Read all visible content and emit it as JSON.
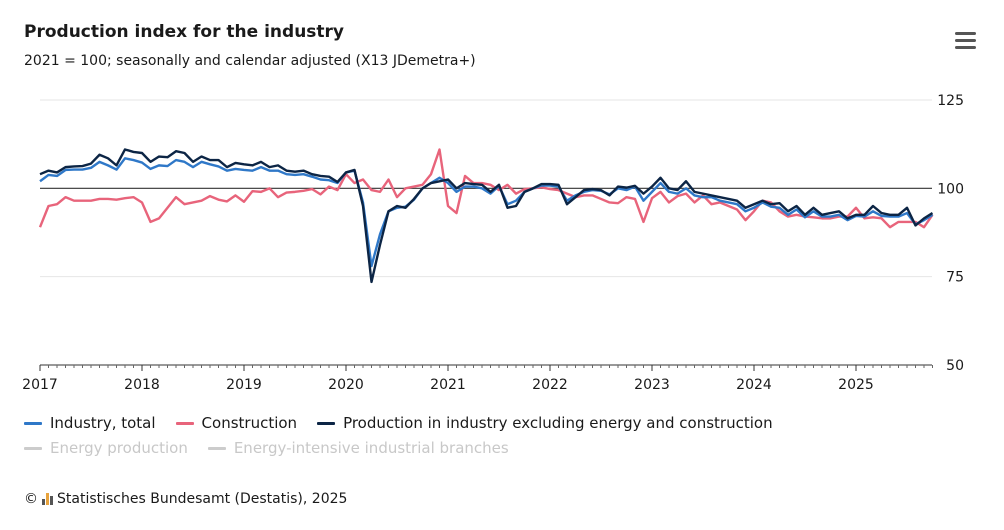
{
  "title": "Production index for the industry",
  "subtitle": "2021 = 100; seasonally and calendar adjusted (X13 JDemetra+)",
  "footer": "Statistisches Bundesamt (Destatis), 2025",
  "copyright": "©",
  "menu_icon": "hamburger-menu-icon",
  "chart_data": {
    "type": "line",
    "title": "Production index for the industry",
    "x_start": "2017-01",
    "frequency": "monthly",
    "xticks": [
      "2017",
      "2018",
      "2019",
      "2020",
      "2021",
      "2022",
      "2023",
      "2024",
      "2025"
    ],
    "yticks": [
      50,
      75,
      100,
      125
    ],
    "ylim": [
      50,
      125
    ],
    "reference_line": 100,
    "legend_position": "bottom",
    "series": [
      {
        "name": "Industry, total",
        "color": "#2f78c8",
        "visible": true,
        "values": [
          102,
          103.8,
          103.5,
          105.2,
          105.3,
          105.3,
          105.8,
          107.5,
          106.5,
          105.3,
          108.5,
          108,
          107.3,
          105.5,
          106.5,
          106.3,
          108,
          107.5,
          106,
          107.5,
          106.8,
          106.2,
          105,
          105.5,
          105.2,
          105,
          106,
          105,
          105,
          104,
          103.8,
          104,
          103.3,
          102.5,
          102.3,
          101.5,
          104.5,
          105,
          96,
          78,
          87,
          93.5,
          94.5,
          94.8,
          96.8,
          100,
          101.5,
          103,
          101.5,
          99,
          100.5,
          100.5,
          100,
          98.5,
          100.7,
          95.5,
          96.5,
          99,
          100,
          100.8,
          100.8,
          100.5,
          96.5,
          98,
          99,
          99.5,
          99.3,
          98.3,
          100,
          99.5,
          100.5,
          96.5,
          99,
          101.5,
          99,
          98.5,
          100,
          98,
          97.5,
          97.5,
          96.5,
          96,
          95.5,
          93.5,
          94.5,
          96,
          94.8,
          94.5,
          92.5,
          94,
          91.8,
          93.5,
          92,
          92,
          92.5,
          91,
          92.2,
          92,
          93.5,
          92.2,
          92,
          92,
          93,
          89.8,
          91,
          92.5
        ]
      },
      {
        "name": "Construction",
        "color": "#e8647b",
        "visible": true,
        "values": [
          89,
          95,
          95.5,
          97.5,
          96.5,
          96.5,
          96.5,
          97,
          97,
          96.8,
          97.2,
          97.5,
          96,
          90.5,
          91.5,
          94.5,
          97.5,
          95.5,
          96,
          96.5,
          97.8,
          96.8,
          96.3,
          98,
          96.2,
          99.2,
          99,
          100,
          97.5,
          98.8,
          99,
          99.3,
          99.8,
          98.3,
          100.5,
          99.5,
          104,
          101.5,
          102.5,
          99.5,
          99,
          102.5,
          97.5,
          100,
          100.5,
          101,
          104,
          111,
          95,
          93,
          103.5,
          101.5,
          101.5,
          101,
          99.5,
          101,
          98.5,
          99.8,
          100,
          100.3,
          99.8,
          99.5,
          98.5,
          97.5,
          98,
          98,
          97,
          96,
          95.8,
          97.5,
          97,
          90.5,
          97.2,
          99,
          96,
          97.8,
          98.5,
          96,
          98,
          95.5,
          96,
          95,
          94,
          91,
          93.5,
          96.5,
          96,
          93.5,
          92,
          92.5,
          92,
          91.8,
          91.5,
          91.5,
          92,
          92,
          94.5,
          91.5,
          91.8,
          91.5,
          89,
          90.5,
          90.5,
          90.5,
          89,
          92.5
        ]
      },
      {
        "name": "Production in industry excluding energy and construction",
        "color": "#0c2545",
        "visible": true,
        "values": [
          104,
          105,
          104.5,
          106,
          106.2,
          106.3,
          107,
          109.5,
          108.5,
          106.5,
          111,
          110.3,
          110,
          107.5,
          109,
          108.8,
          110.5,
          110,
          107.5,
          109,
          108,
          108,
          106,
          107.2,
          106.8,
          106.5,
          107.5,
          106,
          106.5,
          105,
          104.7,
          105,
          104,
          103.5,
          103.3,
          101.8,
          104.5,
          105.2,
          95,
          73.5,
          84,
          93.5,
          95,
          94.5,
          97,
          100,
          101.5,
          102,
          102.5,
          100,
          101.5,
          101.2,
          101,
          99,
          101,
          94.5,
          95,
          99,
          100,
          101.2,
          101.2,
          101,
          95.5,
          97.5,
          99.5,
          99.8,
          99.5,
          98,
          100.5,
          100.2,
          100.7,
          98.5,
          100.5,
          103,
          100,
          99.5,
          102,
          99,
          98.5,
          98,
          97.5,
          97,
          96.5,
          94.5,
          95.5,
          96.5,
          95.5,
          95.8,
          93.5,
          95,
          92.5,
          94.5,
          92.5,
          93,
          93.5,
          91.5,
          92.5,
          92.5,
          95,
          93,
          92.5,
          92.5,
          94.5,
          89.5,
          91.5,
          93
        ]
      },
      {
        "name": "Energy production",
        "color": "#cccccc",
        "visible": false,
        "values": []
      },
      {
        "name": "Energy-intensive industrial branches",
        "color": "#cccccc",
        "visible": false,
        "values": []
      }
    ]
  }
}
